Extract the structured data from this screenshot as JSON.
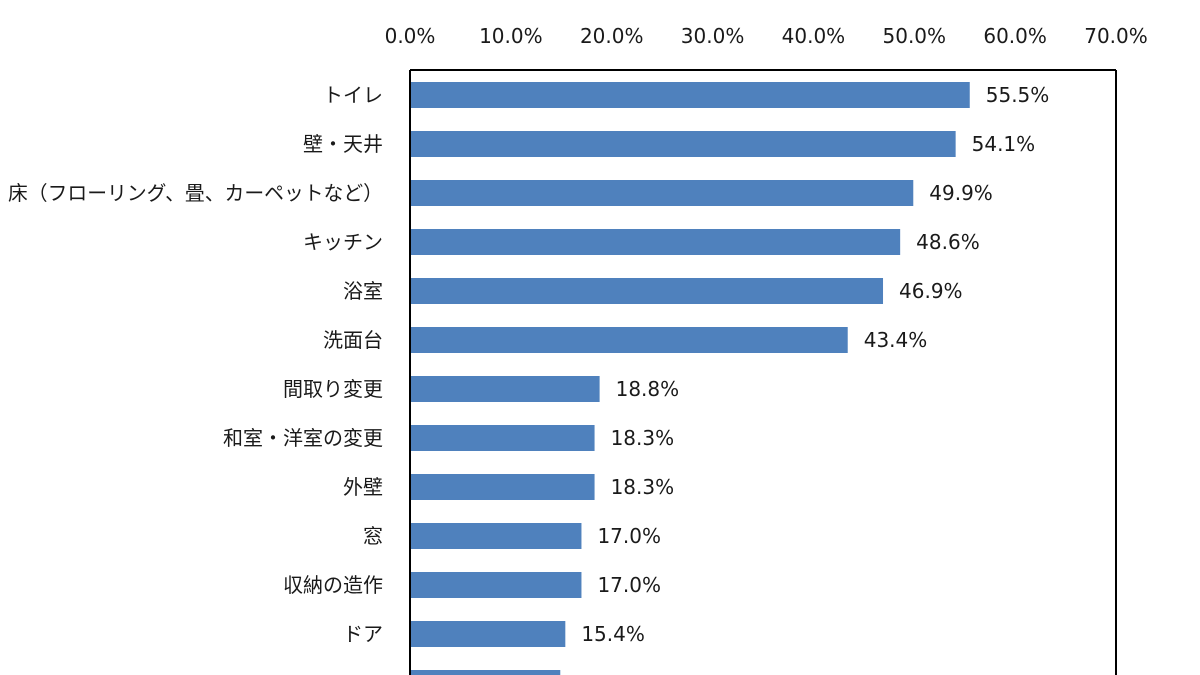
{
  "chart_data": {
    "type": "bar",
    "orientation": "horizontal",
    "title": "",
    "xlabel": "",
    "ylabel": "",
    "xlim": [
      0,
      70
    ],
    "ticks": [
      0,
      10,
      20,
      30,
      40,
      50,
      60,
      70
    ],
    "tick_labels": [
      "0.0%",
      "10.0%",
      "20.0%",
      "30.0%",
      "40.0%",
      "50.0%",
      "60.0%",
      "70.0%"
    ],
    "axis_position": "top",
    "grid": false,
    "bar_color": "#4f81bd",
    "categories": [
      "トイレ",
      "壁・天井",
      "床（フローリング、畳、カーペットなど）",
      "キッチン",
      "浴室",
      "洗面台",
      "間取り変更",
      "和室・洋室の変更",
      "外壁",
      "窓",
      "収納の造作",
      "ドア",
      ""
    ],
    "values": [
      55.5,
      54.1,
      49.9,
      48.6,
      46.9,
      43.4,
      18.8,
      18.3,
      18.3,
      17.0,
      17.0,
      15.4,
      14.9
    ],
    "value_labels": [
      "55.5%",
      "54.1%",
      "49.9%",
      "48.6%",
      "46.9%",
      "43.4%",
      "18.8%",
      "18.3%",
      "18.3%",
      "17.0%",
      "17.0%",
      "15.4%",
      ""
    ]
  }
}
